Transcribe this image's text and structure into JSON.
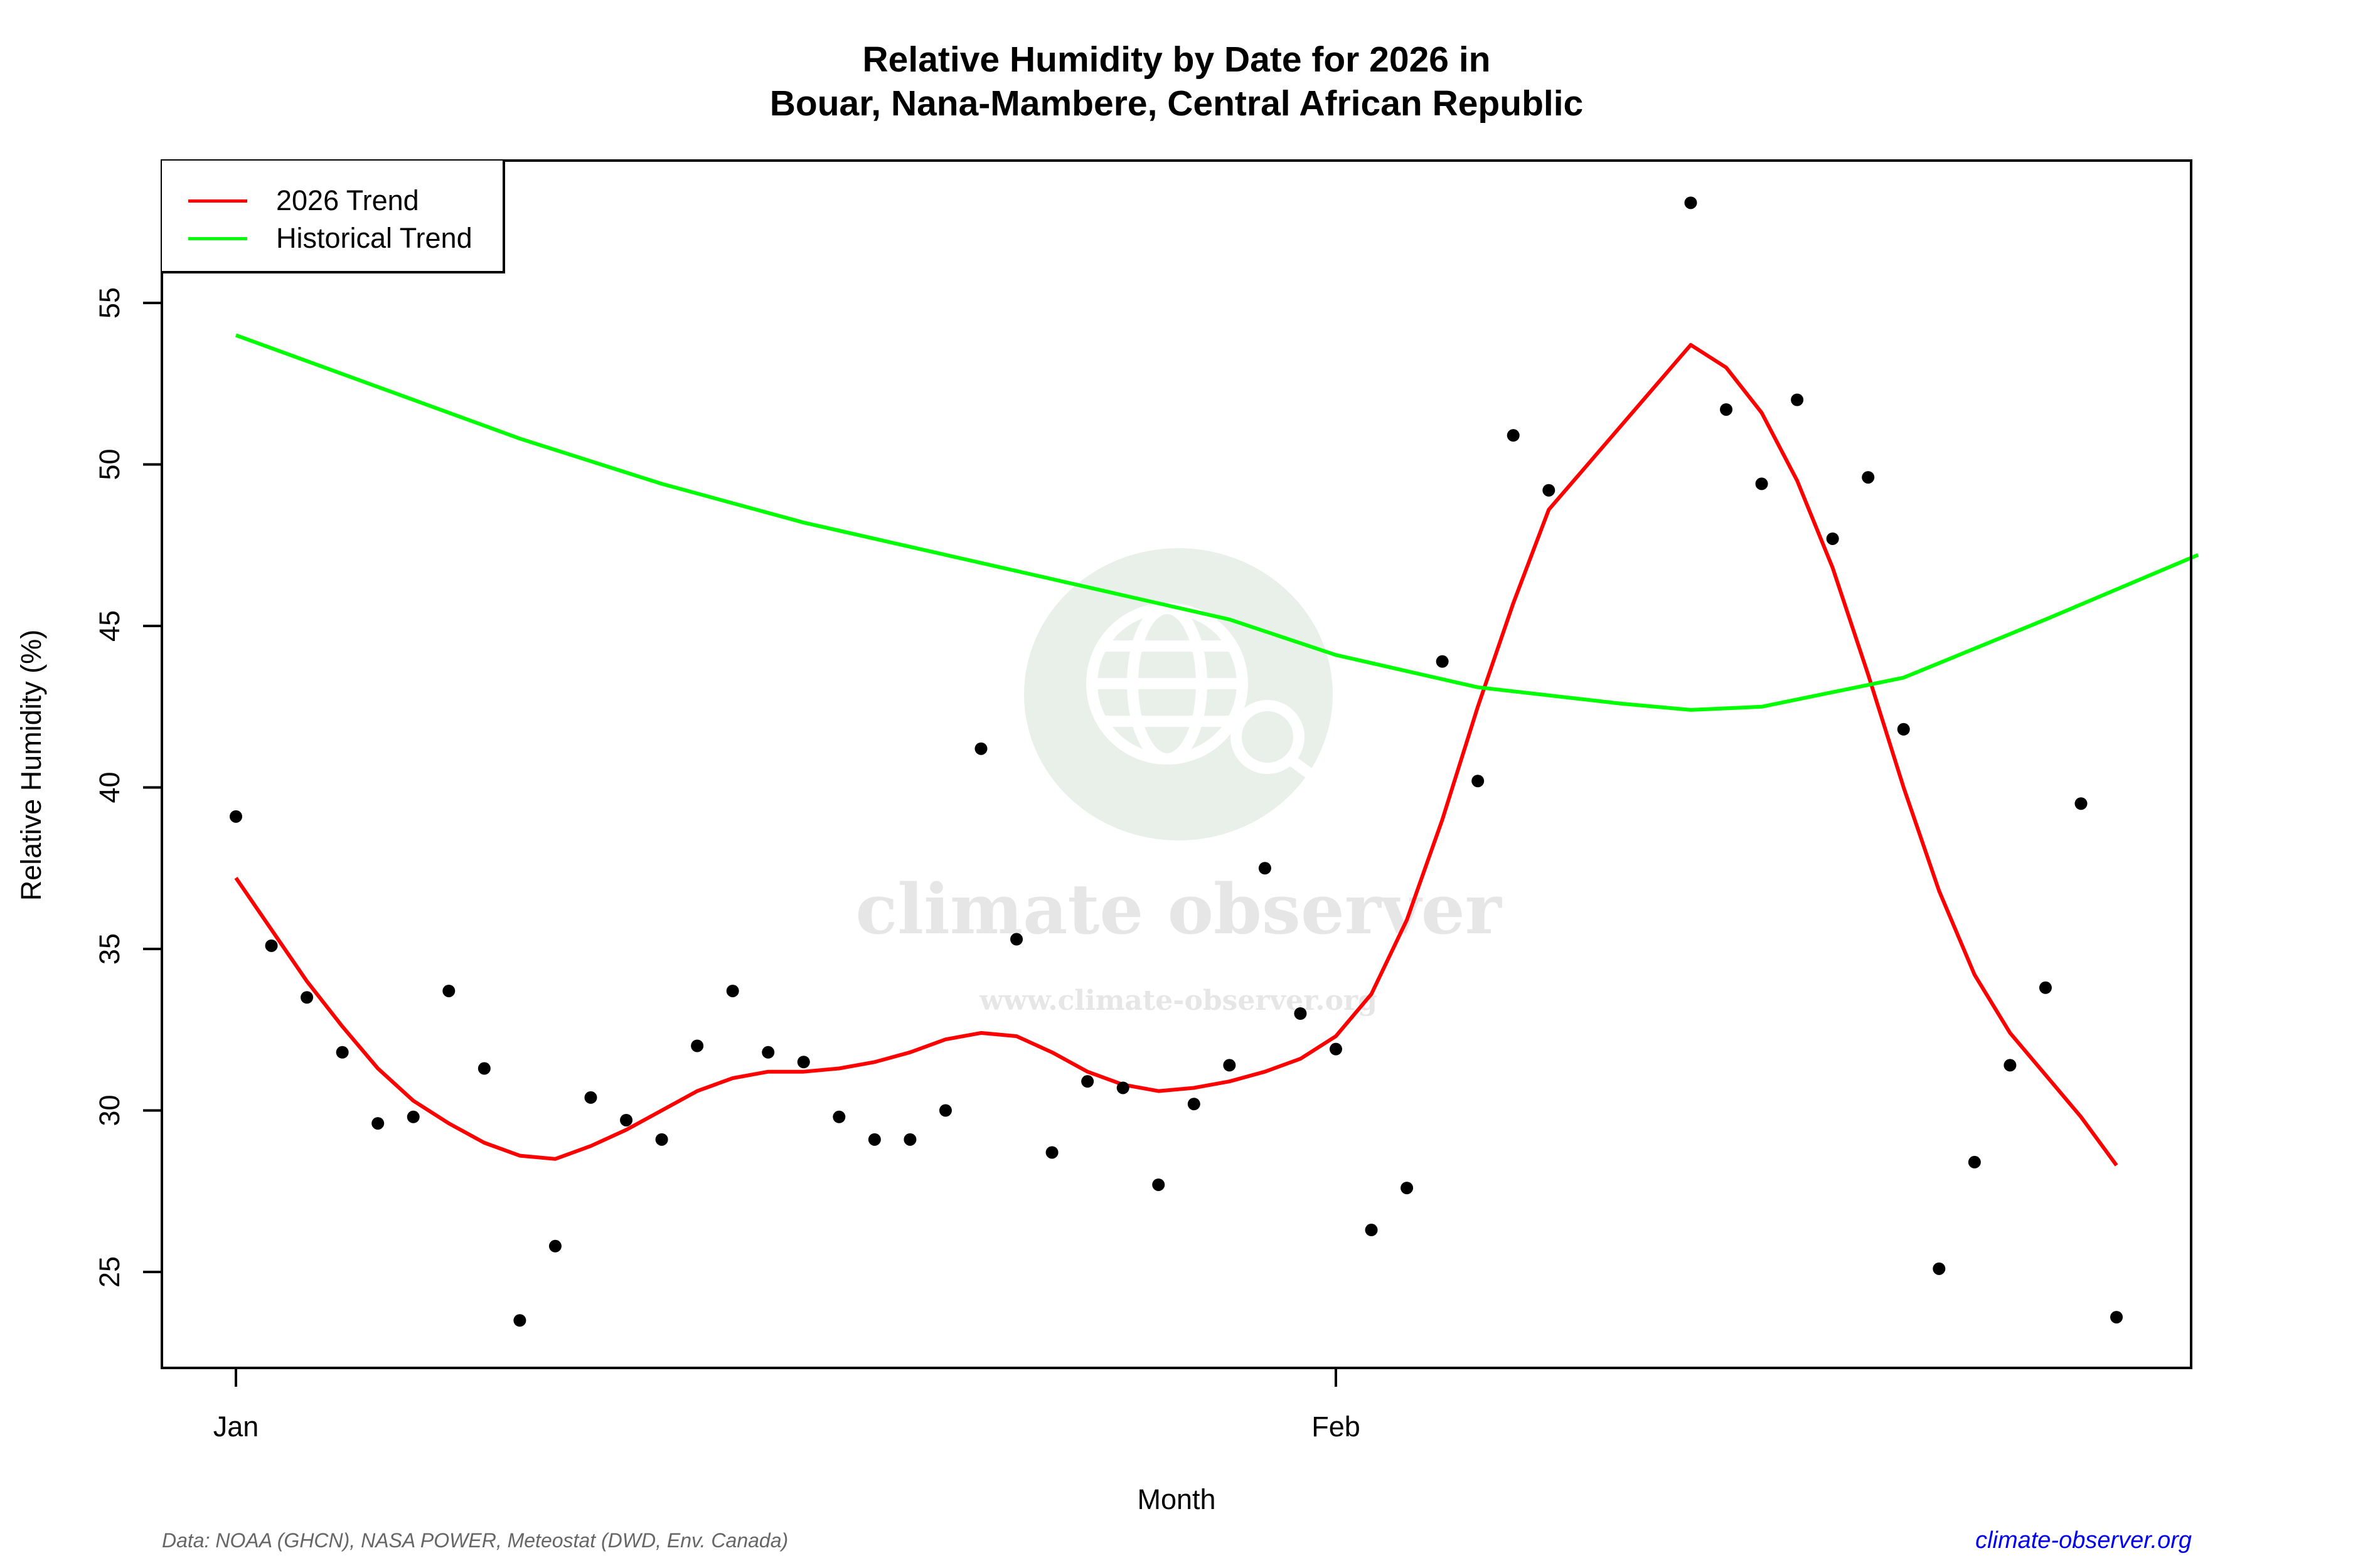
{
  "header": {
    "title_line1": "Relative Humidity by Date for 2026 in",
    "title_line2": "Bouar, Nana-Mambere, Central African Republic"
  },
  "legend": {
    "items": [
      {
        "label": "2026 Trend",
        "color": "#ff0000"
      },
      {
        "label": "Historical Trend",
        "color": "#00ff00"
      }
    ]
  },
  "axes": {
    "xlabel": "Month",
    "ylabel": "Relative Humidity (%)",
    "x_ticks": [
      "Jan",
      "Feb"
    ],
    "y_ticks": [
      "25",
      "30",
      "35",
      "40",
      "45",
      "50",
      "55"
    ]
  },
  "watermark": {
    "name": "climate observer",
    "url": "www.climate-observer.org"
  },
  "footer": {
    "source": "Data: NOAA (GHCN), NASA POWER, Meteostat (DWD, Env. Canada)",
    "link": "climate-observer.org"
  },
  "chart_data": {
    "type": "scatter",
    "title": "Relative Humidity by Date for 2026 in Bouar, Nana-Mambere, Central African Republic",
    "xlabel": "Month",
    "ylabel": "Relative Humidity (%)",
    "ylim": [
      22,
      59.5
    ],
    "xlim_days": [
      -0.5,
      55.5
    ],
    "x_tick_labels": [
      {
        "label": "Jan",
        "day": 0
      },
      {
        "label": "Feb",
        "day": 31
      }
    ],
    "y_ticks": [
      25,
      30,
      35,
      40,
      45,
      50,
      55
    ],
    "grid": false,
    "legend_position": "topleft",
    "points": {
      "name": "Daily observations",
      "days": [
        0,
        1,
        2,
        3,
        4,
        5,
        6,
        7,
        8,
        9,
        10,
        11,
        12,
        13,
        14,
        15,
        16,
        17,
        18,
        19,
        20,
        21,
        22,
        23,
        24,
        25,
        26,
        27,
        28,
        29,
        30,
        31,
        32,
        33,
        34,
        35,
        36,
        37,
        41,
        42,
        43,
        44,
        45,
        46,
        47,
        48,
        49,
        50,
        51,
        52,
        53
      ],
      "values": [
        39.1,
        35.1,
        33.5,
        31.8,
        29.6,
        29.8,
        33.7,
        31.3,
        23.5,
        25.8,
        30.4,
        29.7,
        29.1,
        32.0,
        33.7,
        31.8,
        31.5,
        29.8,
        29.1,
        29.1,
        30.0,
        41.2,
        35.3,
        28.7,
        30.9,
        30.7,
        27.7,
        30.2,
        31.4,
        37.5,
        33.0,
        31.9,
        26.3,
        27.6,
        43.9,
        40.2,
        50.9,
        49.2,
        58.1,
        51.7,
        49.4,
        52.0,
        47.7,
        49.6,
        41.8,
        25.1,
        28.4,
        31.4,
        33.8,
        39.5,
        23.6
      ]
    },
    "series": [
      {
        "name": "2026 Trend",
        "color": "#ff0000",
        "days": [
          0,
          1,
          2,
          3,
          4,
          5,
          6,
          7,
          8,
          9,
          10,
          11,
          12,
          13,
          14,
          15,
          16,
          17,
          18,
          19,
          20,
          21,
          22,
          23,
          24,
          25,
          26,
          27,
          28,
          29,
          30,
          31,
          32,
          33,
          34,
          35,
          36,
          37,
          41,
          42,
          43,
          44,
          45,
          46,
          47,
          48,
          49,
          50,
          51,
          52,
          53
        ],
        "values": [
          37.2,
          35.6,
          34.0,
          32.6,
          31.3,
          30.3,
          29.6,
          29.0,
          28.6,
          28.5,
          28.9,
          29.4,
          30.0,
          30.6,
          31.0,
          31.2,
          31.2,
          31.3,
          31.5,
          31.8,
          32.2,
          32.4,
          32.3,
          31.8,
          31.2,
          30.8,
          30.6,
          30.7,
          30.9,
          31.2,
          31.6,
          32.3,
          33.6,
          35.9,
          39.0,
          42.5,
          45.7,
          48.6,
          53.7,
          53.0,
          51.6,
          49.5,
          46.8,
          43.5,
          40.0,
          36.8,
          34.2,
          32.4,
          31.1,
          29.8,
          28.3
        ]
      },
      {
        "name": "Historical Trend",
        "color": "#00ff00",
        "days": [
          0,
          4,
          8,
          12,
          16,
          20,
          24,
          28,
          31,
          35,
          39,
          41,
          43,
          47,
          51,
          55.3
        ],
        "values": [
          54.0,
          52.4,
          50.8,
          49.4,
          48.2,
          47.2,
          46.2,
          45.2,
          44.1,
          43.1,
          42.6,
          42.4,
          42.5,
          43.4,
          45.2,
          47.2
        ]
      }
    ]
  }
}
